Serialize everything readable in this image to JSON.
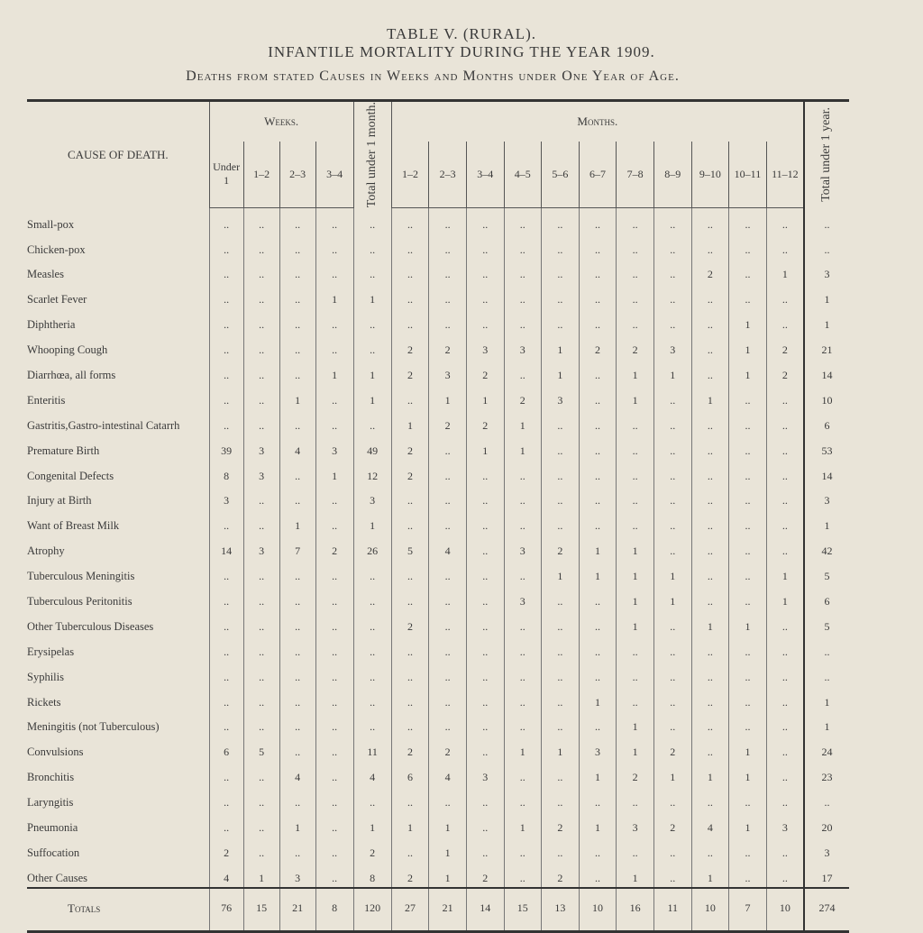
{
  "header": {
    "title": "TABLE V. (RURAL).",
    "subtitle": "INFANTILE MORTALITY DURING THE YEAR 1909.",
    "caption": "Deaths from stated Causes in Weeks and Months under One Year of Age."
  },
  "table": {
    "cause_header": "CAUSE OF DEATH.",
    "weeks_header": "Weeks.",
    "week_columns": [
      "Under 1",
      "1–2",
      "2–3",
      "3–4"
    ],
    "month_total_header": "Total under 1 month.",
    "months_header": "Months.",
    "month_columns": [
      "1–2",
      "2–3",
      "3–4",
      "4–5",
      "5–6",
      "6–7",
      "7–8",
      "8–9",
      "9–10",
      "10–11",
      "11–12"
    ],
    "year_total_header": "Total under 1 year.",
    "rows": [
      [
        "Small-pox",
        "..",
        "..",
        "..",
        "..",
        "..",
        "..",
        "..",
        "..",
        "..",
        "..",
        "..",
        "..",
        "..",
        "..",
        "..",
        "..",
        ".."
      ],
      [
        "Chicken-pox",
        "..",
        "..",
        "..",
        "..",
        "..",
        "..",
        "..",
        "..",
        "..",
        "..",
        "..",
        "..",
        "..",
        "..",
        "..",
        "..",
        ".."
      ],
      [
        "Measles",
        "..",
        "..",
        "..",
        "..",
        "..",
        "..",
        "..",
        "..",
        "..",
        "..",
        "..",
        "..",
        "..",
        "2",
        "..",
        "1",
        "3"
      ],
      [
        "Scarlet Fever",
        "..",
        "..",
        "..",
        "1",
        "1",
        "..",
        "..",
        "..",
        "..",
        "..",
        "..",
        "..",
        "..",
        "..",
        "..",
        "..",
        "1"
      ],
      [
        "Diphtheria",
        "..",
        "..",
        "..",
        "..",
        "..",
        "..",
        "..",
        "..",
        "..",
        "..",
        "..",
        "..",
        "..",
        "..",
        "1",
        "..",
        "1"
      ],
      [
        "Whooping Cough",
        "..",
        "..",
        "..",
        "..",
        "..",
        "2",
        "2",
        "3",
        "3",
        "1",
        "2",
        "2",
        "3",
        "..",
        "1",
        "2",
        "21"
      ],
      [
        "Diarrhœa, all forms",
        "..",
        "..",
        "..",
        "1",
        "1",
        "2",
        "3",
        "2",
        "..",
        "1",
        "..",
        "1",
        "1",
        "..",
        "1",
        "2",
        "14"
      ],
      [
        "Enteritis",
        "..",
        "..",
        "1",
        "..",
        "1",
        "..",
        "1",
        "1",
        "2",
        "3",
        "..",
        "1",
        "..",
        "1",
        "..",
        "..",
        "10"
      ],
      [
        "Gastritis,Gastro-intestinal Catarrh",
        "..",
        "..",
        "..",
        "..",
        "..",
        "1",
        "2",
        "2",
        "1",
        "..",
        "..",
        "..",
        "..",
        "..",
        "..",
        "..",
        "6"
      ],
      [
        "Premature Birth",
        "39",
        "3",
        "4",
        "3",
        "49",
        "2",
        "..",
        "1",
        "1",
        "..",
        "..",
        "..",
        "..",
        "..",
        "..",
        "..",
        "53"
      ],
      [
        "Congenital Defects",
        "8",
        "3",
        "..",
        "1",
        "12",
        "2",
        "..",
        "..",
        "..",
        "..",
        "..",
        "..",
        "..",
        "..",
        "..",
        "..",
        "14"
      ],
      [
        "Injury at Birth",
        "3",
        "..",
        "..",
        "..",
        "3",
        "..",
        "..",
        "..",
        "..",
        "..",
        "..",
        "..",
        "..",
        "..",
        "..",
        "..",
        "3"
      ],
      [
        "Want of Breast Milk",
        "..",
        "..",
        "1",
        "..",
        "1",
        "..",
        "..",
        "..",
        "..",
        "..",
        "..",
        "..",
        "..",
        "..",
        "..",
        "..",
        "1"
      ],
      [
        "Atrophy",
        "14",
        "3",
        "7",
        "2",
        "26",
        "5",
        "4",
        "..",
        "3",
        "2",
        "1",
        "1",
        "..",
        "..",
        "..",
        "..",
        "42"
      ],
      [
        "Tuberculous Meningitis",
        "..",
        "..",
        "..",
        "..",
        "..",
        "..",
        "..",
        "..",
        "..",
        "1",
        "1",
        "1",
        "1",
        "..",
        "..",
        "1",
        "5"
      ],
      [
        "Tuberculous Peritonitis",
        "..",
        "..",
        "..",
        "..",
        "..",
        "..",
        "..",
        "..",
        "3",
        "..",
        "..",
        "1",
        "1",
        "..",
        "..",
        "1",
        "6"
      ],
      [
        "Other Tuberculous Diseases",
        "..",
        "..",
        "..",
        "..",
        "..",
        "2",
        "..",
        "..",
        "..",
        "..",
        "..",
        "1",
        "..",
        "1",
        "1",
        "..",
        "5"
      ],
      [
        "Erysipelas",
        "..",
        "..",
        "..",
        "..",
        "..",
        "..",
        "..",
        "..",
        "..",
        "..",
        "..",
        "..",
        "..",
        "..",
        "..",
        "..",
        ".."
      ],
      [
        "Syphilis",
        "..",
        "..",
        "..",
        "..",
        "..",
        "..",
        "..",
        "..",
        "..",
        "..",
        "..",
        "..",
        "..",
        "..",
        "..",
        "..",
        ".."
      ],
      [
        "Rickets",
        "..",
        "..",
        "..",
        "..",
        "..",
        "..",
        "..",
        "..",
        "..",
        "..",
        "1",
        "..",
        "..",
        "..",
        "..",
        "..",
        "1"
      ],
      [
        "Meningitis (not Tuberculous)",
        "..",
        "..",
        "..",
        "..",
        "..",
        "..",
        "..",
        "..",
        "..",
        "..",
        "..",
        "1",
        "..",
        "..",
        "..",
        "..",
        "1"
      ],
      [
        "Convulsions",
        "6",
        "5",
        "..",
        "..",
        "11",
        "2",
        "2",
        "..",
        "1",
        "1",
        "3",
        "1",
        "2",
        "..",
        "1",
        "..",
        "24"
      ],
      [
        "Bronchitis",
        "..",
        "..",
        "4",
        "..",
        "4",
        "6",
        "4",
        "3",
        "..",
        "..",
        "1",
        "2",
        "1",
        "1",
        "1",
        "..",
        "23"
      ],
      [
        "Laryngitis",
        "..",
        "..",
        "..",
        "..",
        "..",
        "..",
        "..",
        "..",
        "..",
        "..",
        "..",
        "..",
        "..",
        "..",
        "..",
        "..",
        ".."
      ],
      [
        "Pneumonia",
        "..",
        "..",
        "1",
        "..",
        "1",
        "1",
        "1",
        "..",
        "1",
        "2",
        "1",
        "3",
        "2",
        "4",
        "1",
        "3",
        "20"
      ],
      [
        "Suffocation",
        "2",
        "..",
        "..",
        "..",
        "2",
        "..",
        "1",
        "..",
        "..",
        "..",
        "..",
        "..",
        "..",
        "..",
        "..",
        "..",
        "3"
      ],
      [
        "Other Causes",
        "4",
        "1",
        "3",
        "..",
        "8",
        "2",
        "1",
        "2",
        "..",
        "2",
        "..",
        "1",
        "..",
        "1",
        "..",
        "..",
        "17"
      ]
    ],
    "totals": [
      "Totals",
      "76",
      "15",
      "21",
      "8",
      "120",
      "27",
      "21",
      "14",
      "15",
      "13",
      "10",
      "16",
      "11",
      "10",
      "7",
      "10",
      "274"
    ]
  }
}
